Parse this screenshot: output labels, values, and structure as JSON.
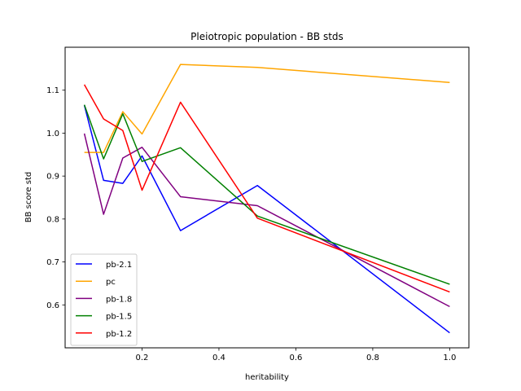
{
  "chart_data": {
    "type": "line",
    "title": "Pleiotropic population - BB stds",
    "xlabel": "heritability",
    "ylabel": "BB score std",
    "xlim": [
      0.0,
      1.05
    ],
    "ylim": [
      0.5,
      1.2
    ],
    "xticks": [
      0.2,
      0.4,
      0.6,
      0.8,
      1.0
    ],
    "xtick_labels": [
      "0.2",
      "0.4",
      "0.6",
      "0.8",
      "1.0"
    ],
    "yticks": [
      0.6,
      0.7,
      0.8,
      0.9,
      1.0,
      1.1
    ],
    "ytick_labels": [
      "0.6",
      "0.7",
      "0.8",
      "0.9",
      "1.0",
      "1.1"
    ],
    "grid": false,
    "legend_position": "lower-left",
    "x": [
      0.05,
      0.1,
      0.15,
      0.2,
      0.3,
      0.5,
      1.0
    ],
    "series": [
      {
        "name": "pb-2.1",
        "color": "#0000ff",
        "values": [
          1.065,
          0.89,
          0.883,
          0.947,
          0.773,
          0.878,
          0.535
        ]
      },
      {
        "name": "pc",
        "color": "#ffa500",
        "values": [
          0.955,
          0.955,
          1.05,
          0.998,
          1.16,
          1.153,
          1.118
        ]
      },
      {
        "name": "pb-1.8",
        "color": "#800080",
        "values": [
          0.999,
          0.811,
          0.942,
          0.967,
          0.852,
          0.831,
          0.596
        ]
      },
      {
        "name": "pb-1.5",
        "color": "#008000",
        "values": [
          1.066,
          0.94,
          1.045,
          0.934,
          0.966,
          0.807,
          0.648
        ]
      },
      {
        "name": "pb-1.2",
        "color": "#ff0000",
        "values": [
          1.113,
          1.033,
          1.006,
          0.867,
          1.072,
          0.802,
          0.63
        ]
      }
    ]
  }
}
